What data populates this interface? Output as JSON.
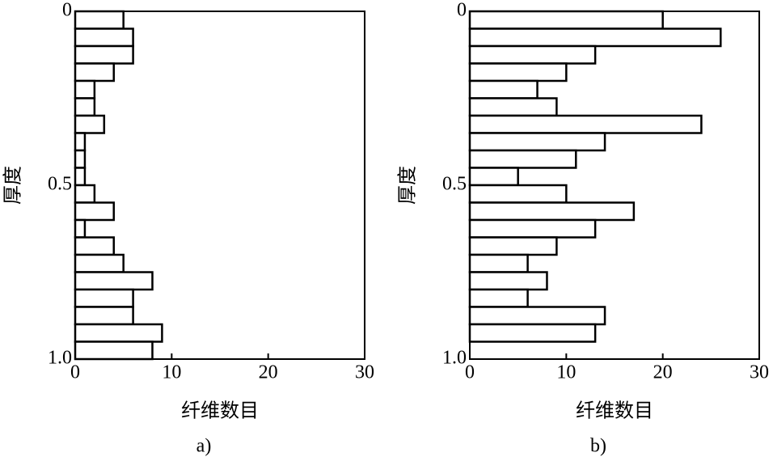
{
  "chart_data": [
    {
      "type": "histogram",
      "orientation": "horizontal",
      "caption": "a)",
      "xlabel": "纤维数目",
      "ylabel": "厚度",
      "bins": [
        0,
        0.05,
        0.1,
        0.15,
        0.2,
        0.25,
        0.3,
        0.35,
        0.4,
        0.45,
        0.5,
        0.55,
        0.6,
        0.65,
        0.7,
        0.75,
        0.8,
        0.85,
        0.9,
        0.95,
        1
      ],
      "values": [
        5,
        6,
        6,
        4,
        2,
        2,
        3,
        1,
        1,
        1,
        2,
        4,
        1,
        4,
        5,
        8,
        6,
        6,
        9,
        8
      ],
      "color": "#ffffff",
      "xlim": [
        0,
        30
      ],
      "xticks": [
        0,
        10,
        20,
        30
      ],
      "ylim": [
        0,
        1
      ],
      "yticks": [
        0,
        0.5,
        {
          "value": 1,
          "label": "1.0"
        }
      ]
    },
    {
      "type": "histogram",
      "orientation": "horizontal",
      "caption": "b)",
      "xlabel": "纤维数目",
      "ylabel": "厚度",
      "bins": [
        0,
        0.05,
        0.1,
        0.15,
        0.2,
        0.25,
        0.3,
        0.35,
        0.4,
        0.45,
        0.5,
        0.55,
        0.6,
        0.65,
        0.7,
        0.75,
        0.8,
        0.85,
        0.9,
        0.95,
        1
      ],
      "values": [
        20,
        26,
        13,
        10,
        7,
        9,
        24,
        14,
        11,
        5,
        10,
        17,
        13,
        9,
        6,
        8,
        6,
        14,
        13,
        0
      ],
      "color": "#ffffff",
      "xlim": [
        0,
        30
      ],
      "xticks": [
        0,
        10,
        20,
        30
      ],
      "ylim": [
        0,
        1
      ],
      "yticks": [
        0,
        0.5,
        {
          "value": 1,
          "label": "1.0"
        }
      ]
    }
  ]
}
